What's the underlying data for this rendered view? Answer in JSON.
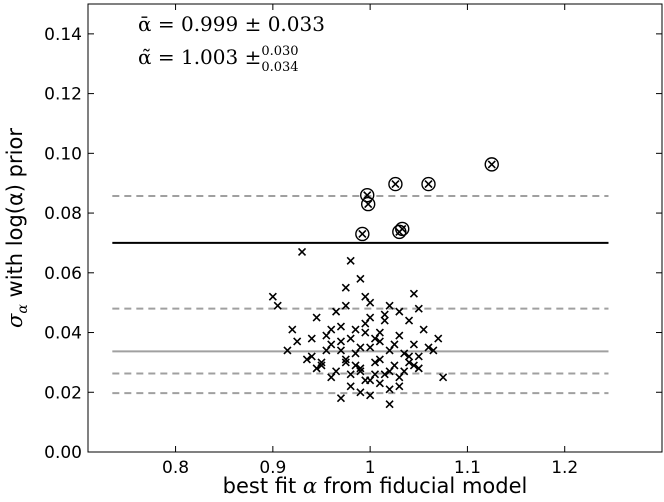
{
  "chart_data": {
    "type": "scatter",
    "xlabel_pre": "best fit ",
    "xlabel_symbol": "α",
    "xlabel_post": " from fiducial model",
    "ylabel_symbol": "σ",
    "ylabel_subscript": "α",
    "ylabel_post": " with log(α) prior",
    "annotations": [
      {
        "text": "ᾱ = 0.999 ± 0.033"
      },
      {
        "text": "α̃ = 1.003 ±",
        "sup": "0.030",
        "sub": "0.034"
      }
    ],
    "xlim": [
      0.71,
      1.3
    ],
    "ylim": [
      0,
      0.15
    ],
    "xticks": [
      0.8,
      0.9,
      1.0,
      1.1,
      1.2
    ],
    "yticks": [
      {
        "value": 0,
        "label": "0.00"
      },
      0.02,
      0.04,
      0.06,
      0.08,
      {
        "value": 0.1,
        "label": "0.10"
      },
      0.12,
      0.14
    ],
    "hlines": [
      {
        "y": 0.07,
        "xmin": 0.735,
        "xmax": 1.245,
        "color": "#000000",
        "style": "solid"
      },
      {
        "y": 0.0337,
        "xmin": 0.735,
        "xmax": 1.245,
        "color": "#a0a0a0",
        "style": "solid"
      },
      {
        "y": 0.0857,
        "xmin": 0.735,
        "xmax": 1.245,
        "color": "#a0a0a0",
        "style": "dashed"
      },
      {
        "y": 0.048,
        "xmin": 0.735,
        "xmax": 1.245,
        "color": "#a0a0a0",
        "style": "dashed"
      },
      {
        "y": 0.0263,
        "xmin": 0.735,
        "xmax": 1.245,
        "color": "#a0a0a0",
        "style": "dashed"
      },
      {
        "y": 0.0197,
        "xmin": 0.735,
        "xmax": 1.245,
        "color": "#a0a0a0",
        "style": "dashed"
      }
    ],
    "series": [
      {
        "marker": "x",
        "color": "#000000",
        "x": [
          0.93,
          0.98,
          0.9,
          0.905,
          0.915,
          0.92,
          0.925,
          1.045,
          1.05,
          1.07,
          1.075,
          0.97,
          1.02,
          0.99,
          0.975,
          0.995,
          1.0,
          1.02,
          1.03,
          1.04,
          1.055,
          1.06,
          0.94,
          0.945,
          0.95,
          0.955,
          0.96,
          0.965,
          0.97,
          0.975,
          0.98,
          0.985,
          0.99,
          0.995,
          1.0,
          1.005,
          1.01,
          1.015,
          1.02,
          1.025,
          1.03,
          1.035,
          1.04,
          1.045,
          1.05,
          0.95,
          0.96,
          0.97,
          0.98,
          0.99,
          1.0,
          1.01,
          1.02,
          1.03,
          1.04,
          0.985,
          0.995,
          1.005,
          1.015,
          1.025,
          0.965,
          0.975,
          1.035,
          1.045,
          0.955,
          0.945,
          0.99,
          1.0,
          1.01,
          0.98,
          1.02,
          1.03,
          0.97,
          0.96,
          1.05,
          1.0,
          0.99,
          1.01,
          0.975,
          1.015,
          0.94,
          0.935,
          1.065,
          1.005,
          0.995,
          0.985
        ],
        "y": [
          0.067,
          0.064,
          0.052,
          0.049,
          0.034,
          0.041,
          0.037,
          0.053,
          0.048,
          0.038,
          0.025,
          0.018,
          0.016,
          0.058,
          0.055,
          0.052,
          0.05,
          0.049,
          0.047,
          0.044,
          0.041,
          0.035,
          0.032,
          0.045,
          0.029,
          0.039,
          0.036,
          0.027,
          0.042,
          0.031,
          0.038,
          0.033,
          0.028,
          0.04,
          0.035,
          0.03,
          0.037,
          0.026,
          0.034,
          0.029,
          0.039,
          0.027,
          0.032,
          0.036,
          0.028,
          0.03,
          0.025,
          0.034,
          0.022,
          0.027,
          0.024,
          0.031,
          0.021,
          0.025,
          0.03,
          0.041,
          0.043,
          0.038,
          0.044,
          0.036,
          0.047,
          0.049,
          0.033,
          0.029,
          0.034,
          0.028,
          0.02,
          0.019,
          0.023,
          0.026,
          0.027,
          0.022,
          0.037,
          0.041,
          0.032,
          0.045,
          0.035,
          0.04,
          0.03,
          0.046,
          0.038,
          0.031,
          0.034,
          0.026,
          0.024,
          0.029
        ]
      },
      {
        "marker": "circled-x",
        "color": "#000000",
        "x": [
          0.997,
          0.998,
          1.026,
          1.06,
          1.125,
          0.992,
          1.03,
          1.033
        ],
        "y": [
          0.086,
          0.083,
          0.0897,
          0.0897,
          0.0963,
          0.073,
          0.0737,
          0.0747
        ]
      }
    ]
  }
}
